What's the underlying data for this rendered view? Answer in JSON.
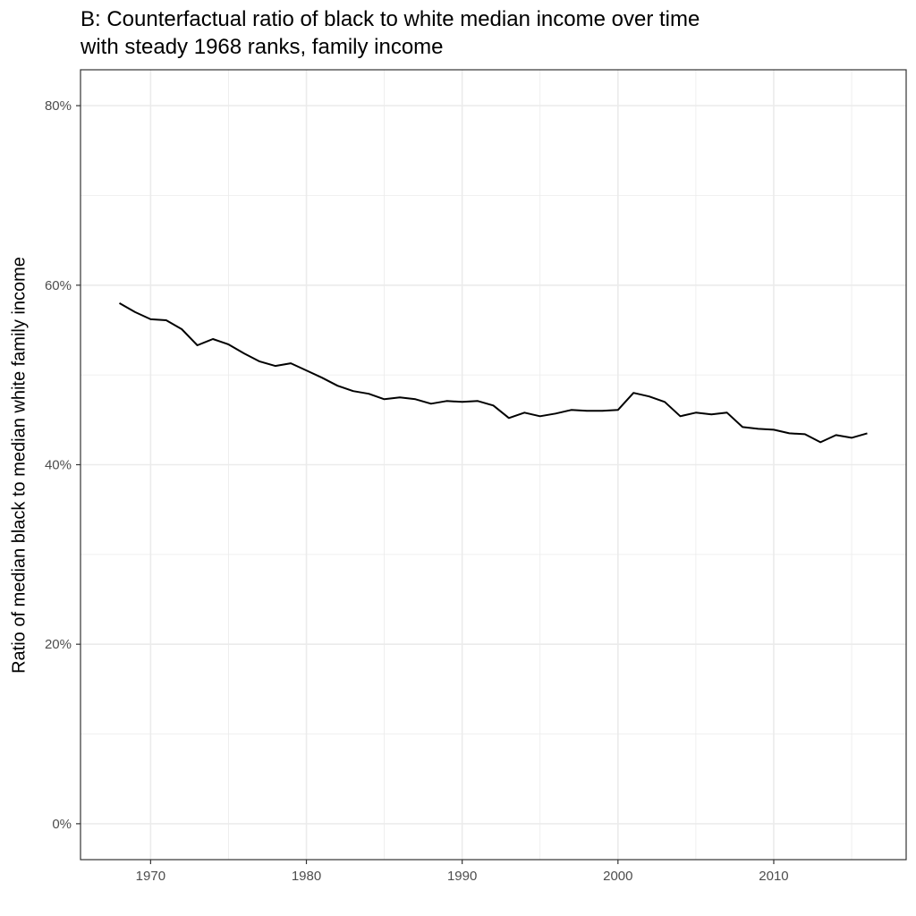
{
  "chart_data": {
    "type": "line",
    "title_lines": [
      "B: Counterfactual ratio of black to white median income over time",
      "with steady 1968 ranks, family income"
    ],
    "xlabel": "",
    "ylabel": "Ratio of median black to median white family income",
    "xlim": [
      1965.5,
      2018.5
    ],
    "ylim": [
      -0.04,
      0.84
    ],
    "x_ticks": [
      1970,
      1980,
      1990,
      2000,
      2010
    ],
    "x_tick_labels": [
      "1970",
      "1980",
      "1990",
      "2000",
      "2010"
    ],
    "y_ticks": [
      0,
      0.2,
      0.4,
      0.6,
      0.8
    ],
    "y_tick_labels": [
      "0%",
      "20%",
      "40%",
      "60%",
      "80%"
    ],
    "grid": true,
    "line_color": "#000000",
    "grid_color": "#ebebeb",
    "x": [
      1968,
      1969,
      1970,
      1971,
      1972,
      1973,
      1974,
      1975,
      1976,
      1977,
      1978,
      1979,
      1980,
      1981,
      1982,
      1983,
      1984,
      1985,
      1986,
      1987,
      1988,
      1989,
      1990,
      1991,
      1992,
      1993,
      1994,
      1995,
      1996,
      1997,
      1998,
      1999,
      2000,
      2001,
      2002,
      2003,
      2004,
      2005,
      2006,
      2007,
      2008,
      2009,
      2010,
      2011,
      2012,
      2013,
      2014,
      2015,
      2016
    ],
    "values": [
      0.58,
      0.57,
      0.562,
      0.561,
      0.551,
      0.533,
      0.54,
      0.534,
      0.524,
      0.515,
      0.51,
      0.513,
      0.505,
      0.497,
      0.488,
      0.482,
      0.479,
      0.473,
      0.475,
      0.473,
      0.468,
      0.471,
      0.47,
      0.471,
      0.466,
      0.452,
      0.458,
      0.454,
      0.457,
      0.461,
      0.46,
      0.46,
      0.461,
      0.48,
      0.476,
      0.47,
      0.454,
      0.458,
      0.456,
      0.458,
      0.442,
      0.44,
      0.439,
      0.435,
      0.434,
      0.425,
      0.433,
      0.43,
      0.435
    ]
  }
}
